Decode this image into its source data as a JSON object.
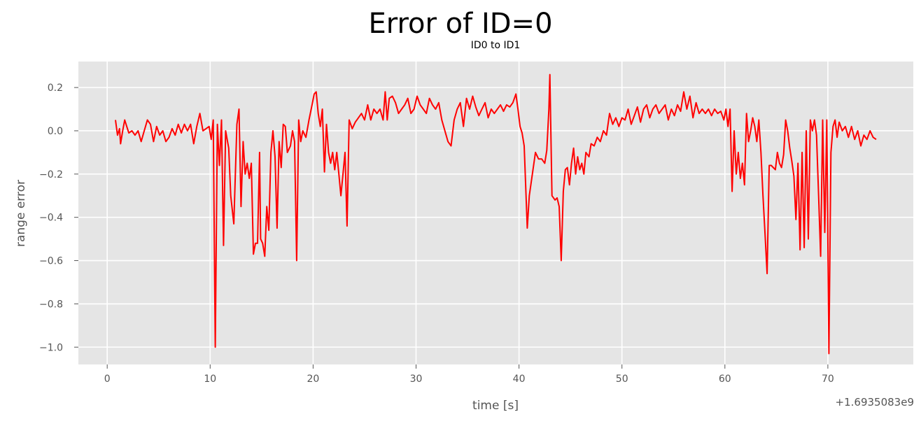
{
  "chart_data": {
    "type": "line",
    "suptitle": "Error of ID=0",
    "title": "ID0 to ID1",
    "xlabel": "time [s]",
    "ylabel": "range error",
    "x_offset_label": "+1.6935083e9",
    "xlim": [
      -2.8,
      78.3
    ],
    "ylim": [
      -1.08,
      0.32
    ],
    "xticks": [
      0,
      10,
      20,
      30,
      40,
      50,
      60,
      70
    ],
    "xtick_labels": [
      "0",
      "10",
      "20",
      "30",
      "40",
      "50",
      "60",
      "70"
    ],
    "yticks": [
      0.2,
      0.0,
      -0.2,
      -0.4,
      -0.6,
      -0.8,
      -1.0
    ],
    "ytick_labels": [
      "0.2",
      "0.0",
      "−0.2",
      "−0.4",
      "−0.6",
      "−0.8",
      "−1.0"
    ],
    "grid": true,
    "series": [
      {
        "name": "ID0 to ID1",
        "color": "#ff0000",
        "points": [
          [
            0.8,
            0.05
          ],
          [
            1.0,
            -0.02
          ],
          [
            1.2,
            0.01
          ],
          [
            1.3,
            -0.06
          ],
          [
            1.5,
            0.0
          ],
          [
            1.7,
            0.05
          ],
          [
            1.9,
            0.02
          ],
          [
            2.1,
            -0.01
          ],
          [
            2.4,
            0.0
          ],
          [
            2.7,
            -0.02
          ],
          [
            3.0,
            0.0
          ],
          [
            3.3,
            -0.05
          ],
          [
            3.6,
            0.0
          ],
          [
            3.9,
            0.05
          ],
          [
            4.2,
            0.03
          ],
          [
            4.5,
            -0.05
          ],
          [
            4.8,
            0.02
          ],
          [
            5.1,
            -0.02
          ],
          [
            5.4,
            0.0
          ],
          [
            5.7,
            -0.05
          ],
          [
            6.0,
            -0.03
          ],
          [
            6.3,
            0.01
          ],
          [
            6.6,
            -0.02
          ],
          [
            6.9,
            0.03
          ],
          [
            7.2,
            -0.01
          ],
          [
            7.5,
            0.03
          ],
          [
            7.8,
            0.0
          ],
          [
            8.1,
            0.03
          ],
          [
            8.4,
            -0.06
          ],
          [
            8.7,
            0.02
          ],
          [
            9.0,
            0.08
          ],
          [
            9.3,
            0.0
          ],
          [
            9.6,
            0.01
          ],
          [
            9.9,
            0.02
          ],
          [
            10.1,
            -0.04
          ],
          [
            10.3,
            0.05
          ],
          [
            10.5,
            -1.0
          ],
          [
            10.7,
            0.03
          ],
          [
            10.9,
            -0.16
          ],
          [
            11.1,
            0.05
          ],
          [
            11.3,
            -0.53
          ],
          [
            11.5,
            0.0
          ],
          [
            11.8,
            -0.08
          ],
          [
            12.0,
            -0.3
          ],
          [
            12.3,
            -0.43
          ],
          [
            12.6,
            0.03
          ],
          [
            12.8,
            0.1
          ],
          [
            13.0,
            -0.35
          ],
          [
            13.2,
            -0.05
          ],
          [
            13.4,
            -0.2
          ],
          [
            13.6,
            -0.15
          ],
          [
            13.8,
            -0.22
          ],
          [
            14.0,
            -0.15
          ],
          [
            14.2,
            -0.57
          ],
          [
            14.4,
            -0.52
          ],
          [
            14.6,
            -0.52
          ],
          [
            14.8,
            -0.1
          ],
          [
            14.9,
            -0.5
          ],
          [
            15.1,
            -0.52
          ],
          [
            15.3,
            -0.58
          ],
          [
            15.5,
            -0.35
          ],
          [
            15.7,
            -0.46
          ],
          [
            15.9,
            -0.1
          ],
          [
            16.1,
            0.0
          ],
          [
            16.3,
            -0.12
          ],
          [
            16.5,
            -0.45
          ],
          [
            16.7,
            -0.05
          ],
          [
            16.9,
            -0.17
          ],
          [
            17.1,
            0.03
          ],
          [
            17.3,
            0.02
          ],
          [
            17.5,
            -0.1
          ],
          [
            17.8,
            -0.07
          ],
          [
            18.0,
            0.0
          ],
          [
            18.2,
            -0.05
          ],
          [
            18.4,
            -0.6
          ],
          [
            18.6,
            0.05
          ],
          [
            18.8,
            -0.05
          ],
          [
            19.0,
            0.0
          ],
          [
            19.3,
            -0.03
          ],
          [
            19.6,
            0.05
          ],
          [
            19.9,
            0.12
          ],
          [
            20.1,
            0.17
          ],
          [
            20.3,
            0.18
          ],
          [
            20.5,
            0.08
          ],
          [
            20.7,
            0.02
          ],
          [
            20.9,
            0.1
          ],
          [
            21.1,
            -0.19
          ],
          [
            21.3,
            0.03
          ],
          [
            21.5,
            -0.1
          ],
          [
            21.7,
            -0.15
          ],
          [
            21.9,
            -0.1
          ],
          [
            22.1,
            -0.18
          ],
          [
            22.3,
            -0.1
          ],
          [
            22.5,
            -0.2
          ],
          [
            22.7,
            -0.3
          ],
          [
            22.9,
            -0.2
          ],
          [
            23.1,
            -0.1
          ],
          [
            23.3,
            -0.44
          ],
          [
            23.5,
            0.05
          ],
          [
            23.8,
            0.01
          ],
          [
            24.1,
            0.04
          ],
          [
            24.4,
            0.06
          ],
          [
            24.7,
            0.08
          ],
          [
            25.0,
            0.05
          ],
          [
            25.3,
            0.12
          ],
          [
            25.6,
            0.05
          ],
          [
            25.9,
            0.1
          ],
          [
            26.2,
            0.08
          ],
          [
            26.5,
            0.1
          ],
          [
            26.8,
            0.05
          ],
          [
            27.0,
            0.18
          ],
          [
            27.2,
            0.05
          ],
          [
            27.4,
            0.15
          ],
          [
            27.7,
            0.16
          ],
          [
            28.0,
            0.13
          ],
          [
            28.3,
            0.08
          ],
          [
            28.6,
            0.1
          ],
          [
            28.9,
            0.12
          ],
          [
            29.2,
            0.15
          ],
          [
            29.5,
            0.08
          ],
          [
            29.8,
            0.1
          ],
          [
            30.1,
            0.16
          ],
          [
            30.4,
            0.12
          ],
          [
            30.7,
            0.1
          ],
          [
            31.0,
            0.08
          ],
          [
            31.3,
            0.15
          ],
          [
            31.6,
            0.12
          ],
          [
            31.9,
            0.1
          ],
          [
            32.2,
            0.13
          ],
          [
            32.5,
            0.05
          ],
          [
            32.8,
            0.0
          ],
          [
            33.1,
            -0.05
          ],
          [
            33.4,
            -0.07
          ],
          [
            33.7,
            0.05
          ],
          [
            34.0,
            0.1
          ],
          [
            34.3,
            0.13
          ],
          [
            34.6,
            0.02
          ],
          [
            34.9,
            0.15
          ],
          [
            35.2,
            0.1
          ],
          [
            35.5,
            0.16
          ],
          [
            35.8,
            0.11
          ],
          [
            36.1,
            0.07
          ],
          [
            36.4,
            0.1
          ],
          [
            36.7,
            0.13
          ],
          [
            37.0,
            0.06
          ],
          [
            37.3,
            0.1
          ],
          [
            37.6,
            0.08
          ],
          [
            37.9,
            0.1
          ],
          [
            38.2,
            0.12
          ],
          [
            38.5,
            0.09
          ],
          [
            38.8,
            0.12
          ],
          [
            39.1,
            0.11
          ],
          [
            39.4,
            0.13
          ],
          [
            39.7,
            0.17
          ],
          [
            39.9,
            0.1
          ],
          [
            40.1,
            0.02
          ],
          [
            40.3,
            -0.01
          ],
          [
            40.5,
            -0.07
          ],
          [
            40.8,
            -0.45
          ],
          [
            41.0,
            -0.3
          ],
          [
            41.3,
            -0.2
          ],
          [
            41.6,
            -0.1
          ],
          [
            41.9,
            -0.13
          ],
          [
            42.2,
            -0.13
          ],
          [
            42.5,
            -0.15
          ],
          [
            42.7,
            -0.09
          ],
          [
            42.9,
            0.1
          ],
          [
            43.0,
            0.26
          ],
          [
            43.2,
            -0.3
          ],
          [
            43.5,
            -0.32
          ],
          [
            43.7,
            -0.31
          ],
          [
            43.9,
            -0.35
          ],
          [
            44.1,
            -0.6
          ],
          [
            44.3,
            -0.28
          ],
          [
            44.5,
            -0.18
          ],
          [
            44.7,
            -0.17
          ],
          [
            44.9,
            -0.25
          ],
          [
            45.1,
            -0.15
          ],
          [
            45.3,
            -0.08
          ],
          [
            45.5,
            -0.2
          ],
          [
            45.7,
            -0.12
          ],
          [
            45.9,
            -0.18
          ],
          [
            46.1,
            -0.15
          ],
          [
            46.3,
            -0.2
          ],
          [
            46.5,
            -0.1
          ],
          [
            46.8,
            -0.12
          ],
          [
            47.0,
            -0.06
          ],
          [
            47.3,
            -0.07
          ],
          [
            47.6,
            -0.03
          ],
          [
            47.9,
            -0.05
          ],
          [
            48.2,
            0.0
          ],
          [
            48.5,
            -0.02
          ],
          [
            48.8,
            0.08
          ],
          [
            49.1,
            0.03
          ],
          [
            49.4,
            0.06
          ],
          [
            49.7,
            0.02
          ],
          [
            50.0,
            0.06
          ],
          [
            50.3,
            0.05
          ],
          [
            50.6,
            0.1
          ],
          [
            50.9,
            0.03
          ],
          [
            51.2,
            0.07
          ],
          [
            51.5,
            0.11
          ],
          [
            51.8,
            0.04
          ],
          [
            52.1,
            0.1
          ],
          [
            52.4,
            0.12
          ],
          [
            52.7,
            0.06
          ],
          [
            53.0,
            0.1
          ],
          [
            53.3,
            0.12
          ],
          [
            53.6,
            0.08
          ],
          [
            53.9,
            0.1
          ],
          [
            54.2,
            0.12
          ],
          [
            54.5,
            0.05
          ],
          [
            54.8,
            0.1
          ],
          [
            55.1,
            0.07
          ],
          [
            55.4,
            0.12
          ],
          [
            55.7,
            0.09
          ],
          [
            56.0,
            0.18
          ],
          [
            56.3,
            0.1
          ],
          [
            56.6,
            0.16
          ],
          [
            56.9,
            0.06
          ],
          [
            57.2,
            0.13
          ],
          [
            57.5,
            0.08
          ],
          [
            57.8,
            0.1
          ],
          [
            58.1,
            0.08
          ],
          [
            58.4,
            0.1
          ],
          [
            58.7,
            0.07
          ],
          [
            59.0,
            0.1
          ],
          [
            59.3,
            0.08
          ],
          [
            59.6,
            0.09
          ],
          [
            59.9,
            0.05
          ],
          [
            60.1,
            0.1
          ],
          [
            60.3,
            0.02
          ],
          [
            60.5,
            0.1
          ],
          [
            60.7,
            -0.28
          ],
          [
            60.9,
            0.0
          ],
          [
            61.1,
            -0.2
          ],
          [
            61.3,
            -0.1
          ],
          [
            61.5,
            -0.22
          ],
          [
            61.7,
            -0.15
          ],
          [
            61.9,
            -0.25
          ],
          [
            62.1,
            0.08
          ],
          [
            62.3,
            -0.05
          ],
          [
            62.5,
            0.0
          ],
          [
            62.7,
            0.06
          ],
          [
            62.9,
            0.02
          ],
          [
            63.1,
            -0.05
          ],
          [
            63.3,
            0.05
          ],
          [
            63.5,
            -0.1
          ],
          [
            63.7,
            -0.3
          ],
          [
            63.9,
            -0.48
          ],
          [
            64.1,
            -0.66
          ],
          [
            64.3,
            -0.16
          ],
          [
            64.5,
            -0.16
          ],
          [
            64.7,
            -0.17
          ],
          [
            64.9,
            -0.18
          ],
          [
            65.1,
            -0.1
          ],
          [
            65.3,
            -0.15
          ],
          [
            65.5,
            -0.17
          ],
          [
            65.7,
            -0.11
          ],
          [
            65.9,
            0.05
          ],
          [
            66.1,
            0.0
          ],
          [
            66.3,
            -0.08
          ],
          [
            66.5,
            -0.14
          ],
          [
            66.7,
            -0.21
          ],
          [
            66.9,
            -0.41
          ],
          [
            67.1,
            -0.15
          ],
          [
            67.3,
            -0.55
          ],
          [
            67.5,
            -0.1
          ],
          [
            67.7,
            -0.54
          ],
          [
            67.9,
            0.0
          ],
          [
            68.1,
            -0.5
          ],
          [
            68.3,
            0.05
          ],
          [
            68.5,
            0.0
          ],
          [
            68.7,
            0.05
          ],
          [
            68.9,
            -0.02
          ],
          [
            69.1,
            -0.3
          ],
          [
            69.3,
            -0.58
          ],
          [
            69.5,
            0.05
          ],
          [
            69.7,
            -0.47
          ],
          [
            69.9,
            0.05
          ],
          [
            70.1,
            -1.03
          ],
          [
            70.3,
            -0.1
          ],
          [
            70.5,
            0.02
          ],
          [
            70.7,
            0.05
          ],
          [
            70.9,
            -0.03
          ],
          [
            71.1,
            0.04
          ],
          [
            71.4,
            0.0
          ],
          [
            71.7,
            0.02
          ],
          [
            72.0,
            -0.03
          ],
          [
            72.3,
            0.02
          ],
          [
            72.6,
            -0.04
          ],
          [
            72.9,
            0.0
          ],
          [
            73.2,
            -0.07
          ],
          [
            73.5,
            -0.02
          ],
          [
            73.8,
            -0.04
          ],
          [
            74.1,
            0.0
          ],
          [
            74.4,
            -0.03
          ],
          [
            74.7,
            -0.04
          ]
        ]
      }
    ]
  }
}
